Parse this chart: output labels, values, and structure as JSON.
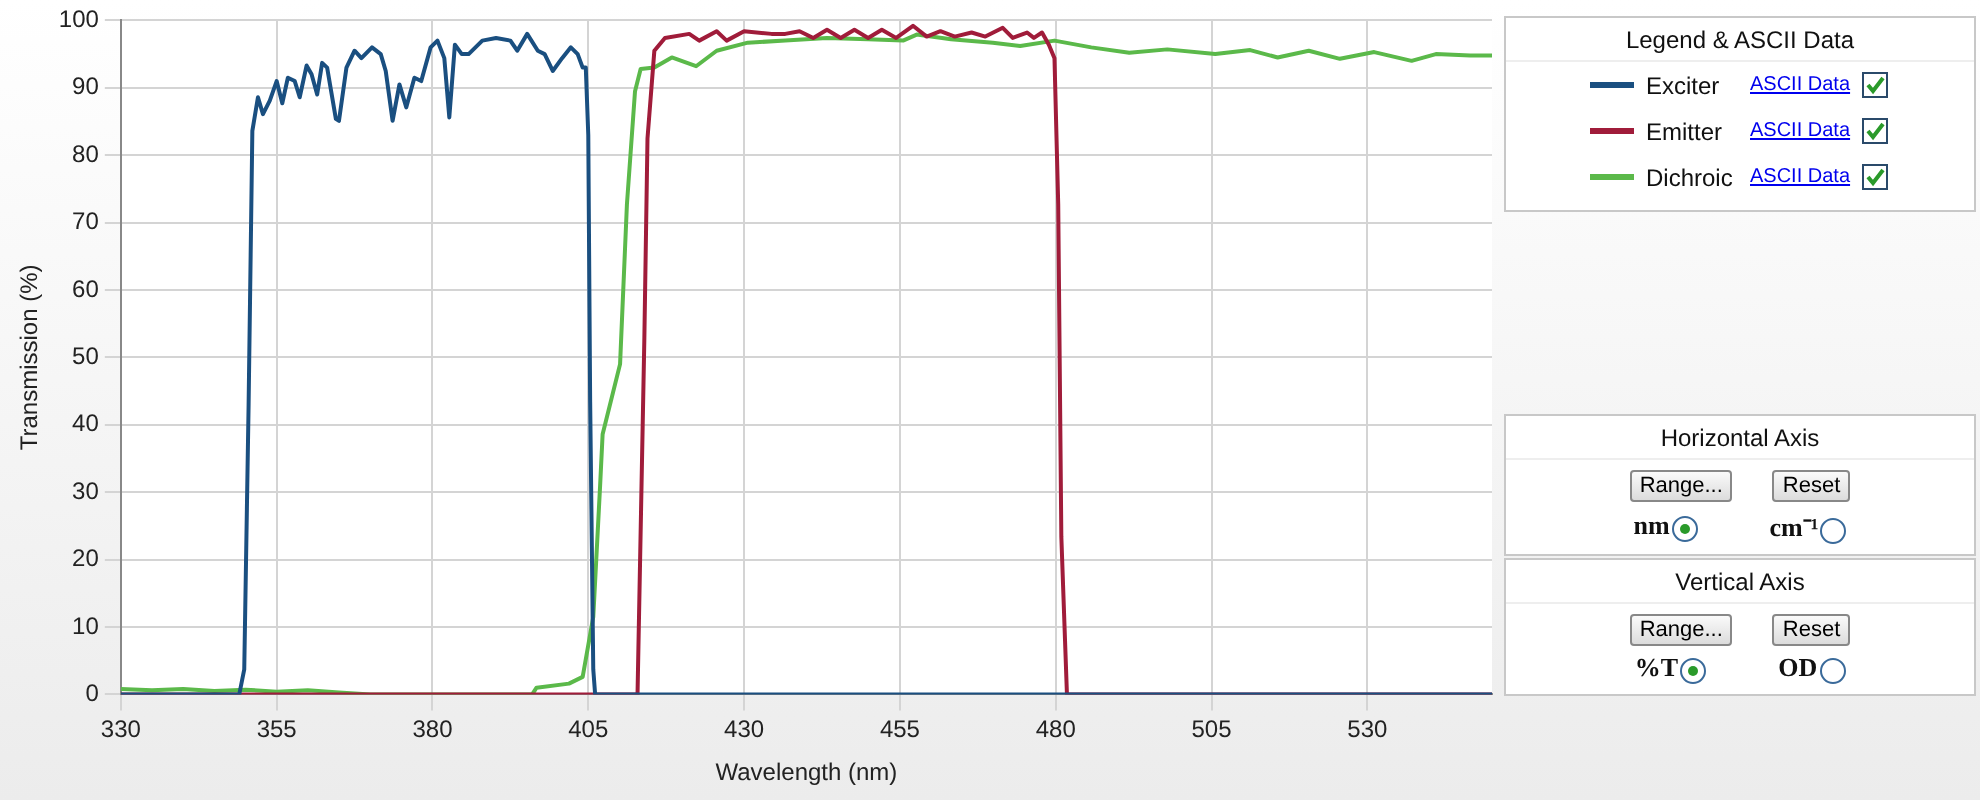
{
  "chart_data": {
    "type": "line",
    "xlabel": "Wavelength (nm)",
    "ylabel": "Transmission (%)",
    "legend_title": "Legend & ASCII Data",
    "xlim": [
      330,
      550
    ],
    "xticks": [
      330,
      355,
      380,
      405,
      430,
      455,
      480,
      505,
      530
    ],
    "ylim": [
      0,
      100
    ],
    "yticks": [
      0,
      10,
      20,
      30,
      40,
      50,
      60,
      70,
      80,
      90,
      100
    ],
    "grid": true,
    "legend": "right",
    "annotations": [
      "ASCII Data",
      "ASCII Data",
      "ASCII Data",
      "Horizontal Axis",
      "Range...",
      "Reset",
      "nm",
      "cm⁻¹",
      "Vertical Axis",
      "Range...",
      "Reset",
      "%T",
      "OD"
    ],
    "series": [
      {
        "name": "Exciter",
        "color": "#1a4f80",
        "x": [
          330,
          349,
          349.8,
          350.5,
          351.1,
          352,
          352.8,
          353.9,
          355,
          355.9,
          356.8,
          357.9,
          358.7,
          359.8,
          360.6,
          361.5,
          362.3,
          363.1,
          364.5,
          365,
          366.2,
          367.5,
          368.6,
          370.3,
          371.7,
          372.5,
          373.6,
          374.7,
          375.8,
          377.1,
          378.2,
          379.7,
          380.8,
          381.9,
          382.7,
          383.6,
          384.7,
          385.8,
          388,
          390.2,
          392.5,
          393.6,
          395.2,
          396.9,
          398,
          399.3,
          400.8,
          402.2,
          403.3,
          404.1,
          404.6,
          405,
          405.3,
          405.8,
          406.1,
          550
        ],
        "values": [
          0,
          0,
          3.7,
          43,
          83.6,
          88.6,
          86.1,
          88.1,
          91,
          87.7,
          91.5,
          91,
          88.6,
          93.3,
          92,
          89,
          93.7,
          93,
          85.4,
          85.1,
          93,
          95.5,
          94.4,
          96,
          95,
          92.5,
          85.1,
          90.5,
          87.1,
          91.5,
          91,
          96,
          97,
          94.4,
          85.6,
          96.4,
          95,
          95,
          97,
          97.4,
          97,
          95.5,
          98,
          95.5,
          95,
          92.5,
          94.4,
          96,
          95,
          93,
          93,
          83,
          43.4,
          3.7,
          0,
          0
        ]
      },
      {
        "name": "Emitter",
        "color": "#a01c3a",
        "x": [
          330,
          412.9,
          414,
          414.5,
          415.6,
          417.3,
          421.2,
          422.8,
          425.6,
          427.2,
          430,
          434.4,
          436.6,
          438.9,
          441.1,
          443.3,
          445.5,
          447.7,
          449.9,
          452.1,
          454.4,
          457.1,
          459.3,
          461.5,
          463.8,
          466.5,
          468.7,
          471.5,
          473.1,
          475.4,
          476.5,
          477.8,
          478.9,
          479.8,
          480.4,
          480.9,
          481.8,
          550
        ],
        "values": [
          0,
          0,
          53,
          82.5,
          95.5,
          97.4,
          98,
          97,
          98.4,
          97,
          98.4,
          98,
          98,
          98.4,
          97.4,
          98.6,
          97.4,
          98.6,
          97.4,
          98.6,
          97.4,
          99.2,
          97.6,
          98.4,
          97.6,
          98.2,
          97.6,
          98.9,
          97.4,
          98.2,
          97.4,
          98.2,
          96.4,
          94.4,
          72.7,
          23.4,
          0,
          0
        ]
      },
      {
        "name": "Dichroic",
        "color": "#5bb94a",
        "x": [
          330,
          335,
          340,
          345,
          350,
          355,
          360,
          365,
          370,
          396,
          396.7,
          401.9,
          404.1,
          405.8,
          406.9,
          407.3,
          410.1,
          411.2,
          412.5,
          413.4,
          415.6,
          418.4,
          422.3,
          425.6,
          430.6,
          436.6,
          443.3,
          449.9,
          455.5,
          457.7,
          463.2,
          469.9,
          474.3,
          479.8,
          485.7,
          491.8,
          497.9,
          505.6,
          511.2,
          515.6,
          520.6,
          525.6,
          531.1,
          537.1,
          541,
          546.5,
          550
        ],
        "values": [
          0.8,
          0.6,
          0.8,
          0.5,
          0.7,
          0.4,
          0.6,
          0.3,
          0,
          0,
          1,
          1.6,
          2.6,
          11.5,
          31,
          38.6,
          49,
          72.7,
          89.5,
          92.8,
          93,
          94.5,
          93.2,
          95.5,
          96.7,
          97,
          97.4,
          97.2,
          97,
          97.9,
          97.2,
          96.7,
          96.2,
          97,
          96,
          95.2,
          95.7,
          95,
          95.6,
          94.5,
          95.5,
          94.3,
          95.3,
          94,
          95,
          94.8,
          94.8
        ]
      }
    ]
  }
}
